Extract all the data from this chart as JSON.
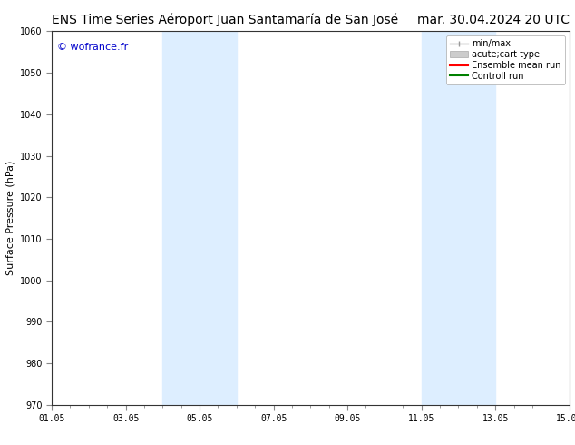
{
  "title_left": "ENS Time Series Aéroport Juan Santamaría de San José",
  "title_right": "mar. 30.04.2024 20 UTC",
  "ylabel": "Surface Pressure (hPa)",
  "xtick_labels": [
    "01.05",
    "03.05",
    "05.05",
    "07.05",
    "09.05",
    "11.05",
    "13.05",
    "15.05"
  ],
  "xtick_positions": [
    0,
    2,
    4,
    6,
    8,
    10,
    12,
    14
  ],
  "ylim": [
    970,
    1060
  ],
  "ytick_positions": [
    970,
    980,
    990,
    1000,
    1010,
    1020,
    1030,
    1040,
    1050,
    1060
  ],
  "shaded_bands": [
    {
      "x_start": 3.0,
      "x_end": 5.0
    },
    {
      "x_start": 10.0,
      "x_end": 12.0
    }
  ],
  "band_color": "#ddeeff",
  "background_color": "#ffffff",
  "plot_bg_color": "#ffffff",
  "watermark": "© wofrance.fr",
  "watermark_color": "#0000cc",
  "legend_items": [
    {
      "label": "min/max",
      "color": "#999999",
      "style": "minmax"
    },
    {
      "label": "acute;cart type",
      "color": "#cccccc",
      "style": "fill"
    },
    {
      "label": "Ensemble mean run",
      "color": "#ff0000",
      "style": "line"
    },
    {
      "label": "Controll run",
      "color": "#008000",
      "style": "line"
    }
  ],
  "title_fontsize": 10,
  "axis_fontsize": 8,
  "tick_fontsize": 7,
  "legend_fontsize": 7
}
